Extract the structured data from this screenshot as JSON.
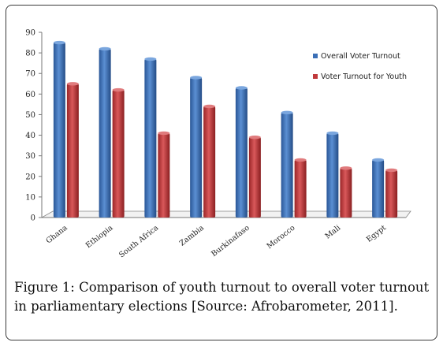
{
  "chart_data": {
    "type": "bar",
    "categories": [
      "Ghana",
      "Ethiopia",
      "South Africa",
      "Zambia",
      "Burkinafaso",
      "Morocco",
      "Mali",
      "Egypt"
    ],
    "series": [
      {
        "name": "Overall Voter Turnout",
        "color": "#3b6fb6",
        "values": [
          85,
          82,
          77,
          68,
          63,
          51,
          41,
          28
        ]
      },
      {
        "name": "Voter Turnout for Youth",
        "color": "#c0393b",
        "values": [
          65,
          62,
          41,
          54,
          39,
          28,
          24,
          23
        ]
      }
    ],
    "ylim": [
      0,
      90
    ],
    "yticks": [
      0,
      10,
      20,
      30,
      40,
      50,
      60,
      70,
      80,
      90
    ],
    "title": "",
    "xlabel": "",
    "ylabel": "",
    "legend_position": "right",
    "style": "3d"
  },
  "caption": {
    "label": "Figure 1:",
    "text": " Comparison of youth turnout to overall voter turnout in parliamentary elections [Source: Afrobarometer, 2011]."
  }
}
